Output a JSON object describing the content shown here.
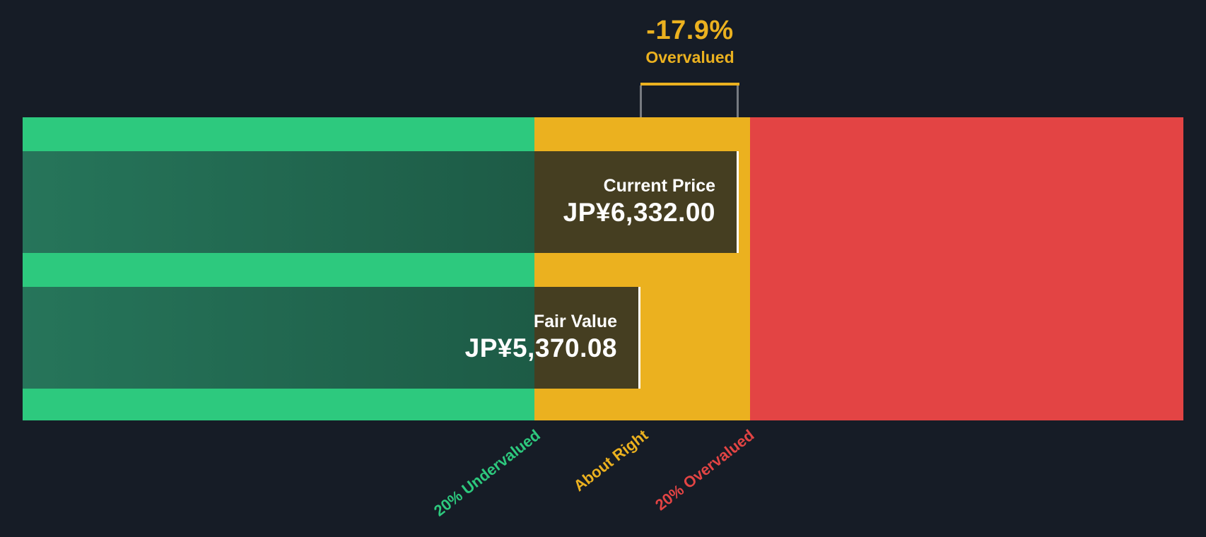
{
  "chart_data": {
    "type": "bar",
    "subtype": "valuation-gauge",
    "currency_prefix": "JP¥",
    "series": [
      {
        "name": "Current Price",
        "value": 6332.0,
        "display": "JP¥6,332.00"
      },
      {
        "name": "Fair Value",
        "value": 5370.08,
        "display": "JP¥5,370.08"
      }
    ],
    "percent_vs_fair_value": -17.9,
    "valuation_status": "Overvalued",
    "zones": [
      {
        "label": "20% Undervalued",
        "upper_bound": 4296.06,
        "color": "#2DC97E"
      },
      {
        "label": "About Right",
        "upper_bound": 6444.1,
        "color": "#EBB11F"
      },
      {
        "label": "20% Overvalued",
        "upper_bound": null,
        "color": "#E34444"
      }
    ],
    "grid": false,
    "legend_position": "none",
    "axis_labels_rotation_deg": -38
  },
  "annotation": {
    "delta": "-17.9%",
    "status": "Overvalued"
  },
  "bars": {
    "current": {
      "label": "Current Price",
      "value": "JP¥6,332.00"
    },
    "fair": {
      "label": "Fair Value",
      "value": "JP¥5,370.08"
    }
  },
  "zone_labels": {
    "undervalued": "20% Undervalued",
    "about_right": "About Right",
    "overvalued": "20% Overvalued"
  },
  "colors": {
    "background": "#161C26",
    "green": "#2DC97E",
    "green_dark_left": "#26755A",
    "green_dark_right": "#1D5B46",
    "amber": "#EBB11F",
    "amber_dark": "#453E21",
    "red": "#E34444",
    "white": "#FFFFFF"
  }
}
